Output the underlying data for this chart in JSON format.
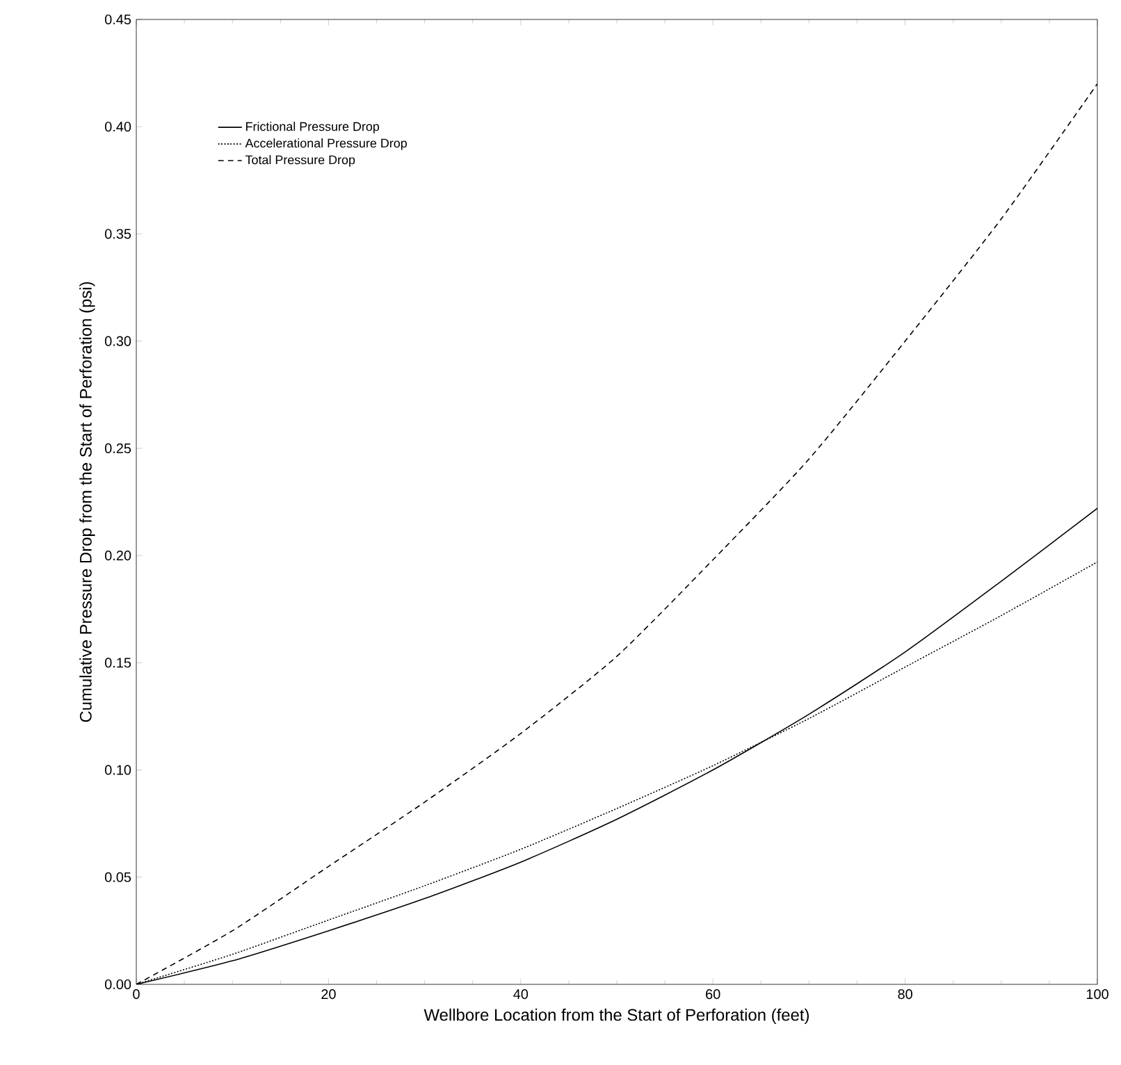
{
  "chart_data": {
    "type": "line",
    "xlabel": "Wellbore Location from the Start of Perforation (feet)",
    "ylabel": "Cumulative Pressure Drop from the Start of Perforation (psi)",
    "x": [
      0,
      10,
      20,
      30,
      40,
      50,
      60,
      70,
      80,
      90,
      100
    ],
    "series": [
      {
        "name": "Frictional Pressure Drop",
        "color": "#000000",
        "line_style": "solid",
        "values": [
          0,
          0.011,
          0.025,
          0.04,
          0.057,
          0.077,
          0.1,
          0.126,
          0.155,
          0.188,
          0.222
        ]
      },
      {
        "name": "Accelerational Pressure Drop",
        "color": "#000000",
        "line_style": "dotted",
        "values": [
          0,
          0.014,
          0.03,
          0.046,
          0.063,
          0.082,
          0.102,
          0.124,
          0.148,
          0.172,
          0.197
        ]
      },
      {
        "name": "Total Pressure Drop",
        "color": "#000000",
        "line_style": "dashed",
        "values": [
          0,
          0.025,
          0.055,
          0.085,
          0.117,
          0.153,
          0.198,
          0.245,
          0.3,
          0.357,
          0.42
        ]
      }
    ],
    "xlim": [
      0,
      100
    ],
    "xticks": [
      0,
      20,
      40,
      60,
      80,
      100
    ],
    "ylim": [
      0,
      0.45
    ],
    "yticks": [
      {
        "value": 0,
        "label": "0.00"
      },
      {
        "value": 0.05,
        "label": "0.05"
      },
      {
        "value": 0.1,
        "label": "0.10"
      },
      {
        "value": 0.15,
        "label": "0.15"
      },
      {
        "value": 0.2,
        "label": "0.20"
      },
      {
        "value": 0.25,
        "label": "0.25"
      },
      {
        "value": 0.3,
        "label": "0.30"
      },
      {
        "value": 0.35,
        "label": "0.35"
      },
      {
        "value": 0.4,
        "label": "0.40"
      },
      {
        "value": 0.45,
        "label": "0.45"
      }
    ],
    "grid": false,
    "legend": "top left",
    "marker": "none"
  }
}
